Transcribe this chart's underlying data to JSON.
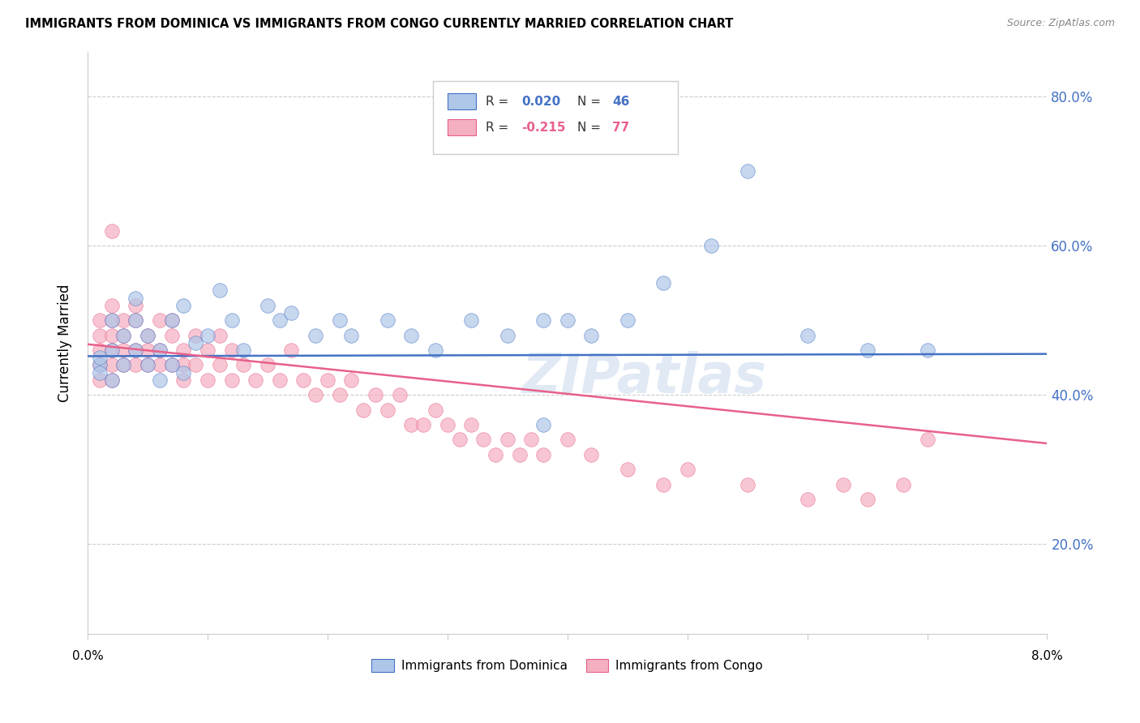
{
  "title": "IMMIGRANTS FROM DOMINICA VS IMMIGRANTS FROM CONGO CURRENTLY MARRIED CORRELATION CHART",
  "source": "Source: ZipAtlas.com",
  "ylabel": "Currently Married",
  "right_ytick_vals": [
    0.2,
    0.4,
    0.6,
    0.8
  ],
  "right_ytick_labels": [
    "20.0%",
    "40.0%",
    "60.0%",
    "80.0%"
  ],
  "legend1_r": "0.020",
  "legend1_n": "46",
  "legend2_r": "-0.215",
  "legend2_n": "77",
  "dominica_color": "#aec6e8",
  "congo_color": "#f4afc0",
  "dominica_edge_color": "#4472c4",
  "congo_edge_color": "#e8608a",
  "dominica_line_color": "#4472c4",
  "congo_line_color": "#e8608a",
  "legend_dominica_label": "Immigrants from Dominica",
  "legend_congo_label": "Immigrants from Congo",
  "watermark": "ZIPatlas",
  "xlim": [
    0.0,
    0.08
  ],
  "ylim": [
    0.08,
    0.86
  ],
  "dominica_x": [
    0.001,
    0.001,
    0.001,
    0.002,
    0.002,
    0.002,
    0.003,
    0.003,
    0.004,
    0.004,
    0.004,
    0.005,
    0.005,
    0.006,
    0.006,
    0.007,
    0.007,
    0.008,
    0.008,
    0.009,
    0.01,
    0.011,
    0.012,
    0.013,
    0.015,
    0.016,
    0.017,
    0.019,
    0.021,
    0.022,
    0.025,
    0.027,
    0.029,
    0.032,
    0.035,
    0.038,
    0.038,
    0.04,
    0.042,
    0.045,
    0.048,
    0.052,
    0.055,
    0.06,
    0.065,
    0.07
  ],
  "dominica_y": [
    0.44,
    0.45,
    0.43,
    0.46,
    0.5,
    0.42,
    0.48,
    0.44,
    0.5,
    0.46,
    0.53,
    0.44,
    0.48,
    0.46,
    0.42,
    0.5,
    0.44,
    0.52,
    0.43,
    0.47,
    0.48,
    0.54,
    0.5,
    0.46,
    0.52,
    0.5,
    0.51,
    0.48,
    0.5,
    0.48,
    0.5,
    0.48,
    0.46,
    0.5,
    0.48,
    0.5,
    0.36,
    0.5,
    0.48,
    0.5,
    0.55,
    0.6,
    0.7,
    0.48,
    0.46,
    0.46
  ],
  "congo_x": [
    0.001,
    0.001,
    0.001,
    0.001,
    0.001,
    0.002,
    0.002,
    0.002,
    0.002,
    0.002,
    0.002,
    0.003,
    0.003,
    0.003,
    0.003,
    0.004,
    0.004,
    0.004,
    0.004,
    0.005,
    0.005,
    0.005,
    0.006,
    0.006,
    0.006,
    0.007,
    0.007,
    0.007,
    0.008,
    0.008,
    0.008,
    0.009,
    0.009,
    0.01,
    0.01,
    0.011,
    0.011,
    0.012,
    0.012,
    0.013,
    0.014,
    0.015,
    0.016,
    0.017,
    0.018,
    0.019,
    0.02,
    0.021,
    0.022,
    0.023,
    0.024,
    0.025,
    0.026,
    0.027,
    0.028,
    0.029,
    0.03,
    0.031,
    0.032,
    0.033,
    0.034,
    0.035,
    0.036,
    0.037,
    0.038,
    0.04,
    0.042,
    0.045,
    0.048,
    0.05,
    0.055,
    0.06,
    0.063,
    0.065,
    0.068,
    0.07,
    0.002
  ],
  "congo_y": [
    0.44,
    0.46,
    0.42,
    0.5,
    0.48,
    0.44,
    0.46,
    0.48,
    0.42,
    0.5,
    0.52,
    0.46,
    0.5,
    0.44,
    0.48,
    0.46,
    0.44,
    0.5,
    0.52,
    0.48,
    0.44,
    0.46,
    0.5,
    0.44,
    0.46,
    0.48,
    0.44,
    0.5,
    0.46,
    0.44,
    0.42,
    0.48,
    0.44,
    0.42,
    0.46,
    0.44,
    0.48,
    0.42,
    0.46,
    0.44,
    0.42,
    0.44,
    0.42,
    0.46,
    0.42,
    0.4,
    0.42,
    0.4,
    0.42,
    0.38,
    0.4,
    0.38,
    0.4,
    0.36,
    0.36,
    0.38,
    0.36,
    0.34,
    0.36,
    0.34,
    0.32,
    0.34,
    0.32,
    0.34,
    0.32,
    0.34,
    0.32,
    0.3,
    0.28,
    0.3,
    0.28,
    0.26,
    0.28,
    0.26,
    0.28,
    0.34,
    0.62
  ]
}
